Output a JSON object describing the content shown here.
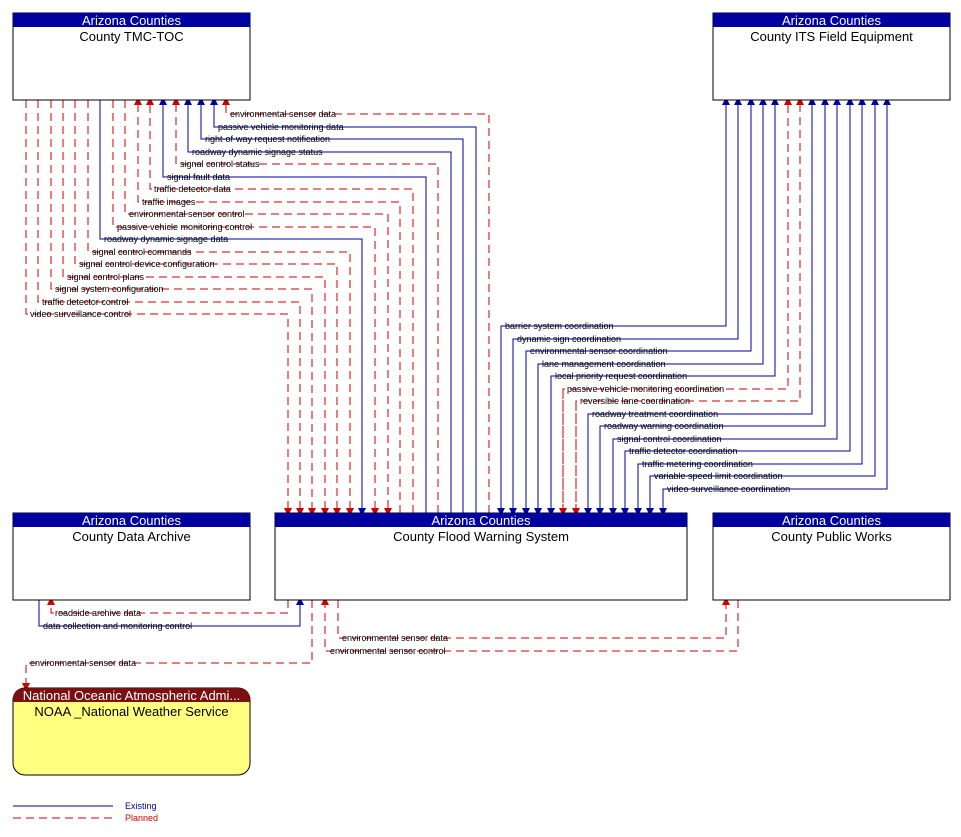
{
  "boxes": {
    "tmc": {
      "owner": "Arizona Counties",
      "name": "County TMC-TOC"
    },
    "its": {
      "owner": "Arizona Counties",
      "name": "County ITS Field Equipment"
    },
    "archive": {
      "owner": "Arizona Counties",
      "name": "County Data Archive"
    },
    "flood": {
      "owner": "Arizona Counties",
      "name": "County Flood Warning System"
    },
    "works": {
      "owner": "Arizona Counties",
      "name": "County Public Works"
    },
    "noaa": {
      "owner": "National Oceanic Atmospheric Admi...",
      "name": "NOAA _National Weather Service"
    }
  },
  "tmc_flows": [
    {
      "label": "environmental sensor data",
      "status": "planned"
    },
    {
      "label": "passive vehicle monitoring data",
      "status": "existing"
    },
    {
      "label": "right-of-way request notification",
      "status": "existing"
    },
    {
      "label": "roadway dynamic signage status",
      "status": "existing"
    },
    {
      "label": "signal control status",
      "status": "planned"
    },
    {
      "label": "signal fault data",
      "status": "existing"
    },
    {
      "label": "traffic detector data",
      "status": "planned"
    },
    {
      "label": "traffic images",
      "status": "planned"
    },
    {
      "label": "environmental sensor control",
      "status": "planned"
    },
    {
      "label": "passive vehicle monitoring control",
      "status": "planned"
    },
    {
      "label": "roadway dynamic signage data",
      "status": "existing"
    },
    {
      "label": "signal control commands",
      "status": "planned"
    },
    {
      "label": "signal control device configuration",
      "status": "planned"
    },
    {
      "label": "signal control plans",
      "status": "planned"
    },
    {
      "label": "signal system configuration",
      "status": "planned"
    },
    {
      "label": "traffic detector control",
      "status": "planned"
    },
    {
      "label": "video surveillance control",
      "status": "planned"
    }
  ],
  "its_flows": [
    {
      "label": "barrier system coordination",
      "status": "existing"
    },
    {
      "label": "dynamic sign coordination",
      "status": "existing"
    },
    {
      "label": "environmental sensor coordination",
      "status": "existing"
    },
    {
      "label": "lane management coordination",
      "status": "existing"
    },
    {
      "label": "local priority request coordination",
      "status": "existing"
    },
    {
      "label": "passive vehicle monitoring coordination",
      "status": "planned"
    },
    {
      "label": "reversible lane coordination",
      "status": "planned"
    },
    {
      "label": "roadway treatment coordination",
      "status": "existing"
    },
    {
      "label": "roadway warning coordination",
      "status": "existing"
    },
    {
      "label": "signal control coordination",
      "status": "existing"
    },
    {
      "label": "traffic detector coordination",
      "status": "existing"
    },
    {
      "label": "traffic metering coordination",
      "status": "existing"
    },
    {
      "label": "variable speed limit coordination",
      "status": "existing"
    },
    {
      "label": "video surveillance coordination",
      "status": "existing"
    }
  ],
  "archive_flows": [
    {
      "label": "roadside archive data",
      "status": "planned"
    },
    {
      "label": "data collection and monitoring control",
      "status": "existing"
    }
  ],
  "works_flows": [
    {
      "label": "environmental sensor data",
      "status": "planned"
    },
    {
      "label": "environmental sensor control",
      "status": "planned"
    }
  ],
  "noaa_flows": [
    {
      "label": "environmental sensor data",
      "status": "planned"
    }
  ],
  "legend": {
    "existing": "Existing",
    "planned": "Planned"
  },
  "colors": {
    "existing": "#0000a0",
    "planned": "#cc0000",
    "noaa_header": "#7a1010",
    "noaa_fill": "#ffff80"
  }
}
